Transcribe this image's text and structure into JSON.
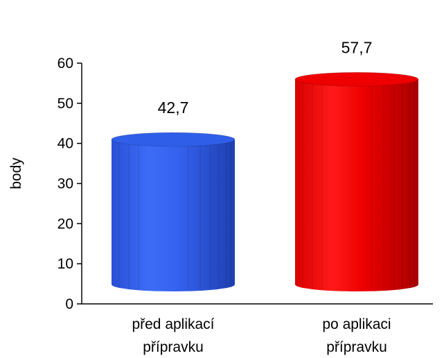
{
  "chart_data": {
    "type": "bar",
    "style": "3d-cylinder",
    "categories": [
      [
        "před aplikací",
        "přípravku"
      ],
      [
        "po aplikaci",
        "přípravku"
      ]
    ],
    "values": [
      42.7,
      57.7
    ],
    "value_labels": [
      "42,7",
      "57,7"
    ],
    "colors": [
      "#2f5fe8",
      "#ee0000"
    ],
    "ylabel": "body",
    "ylim": [
      0,
      60
    ],
    "yticks": [
      0,
      10,
      20,
      30,
      40,
      50,
      60
    ],
    "grid": false,
    "legend": "none"
  }
}
